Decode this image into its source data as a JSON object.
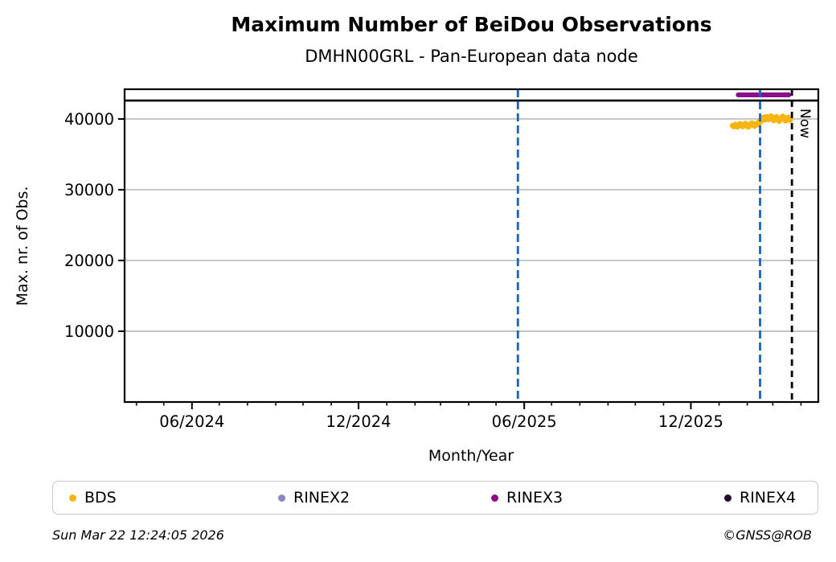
{
  "title": "Maximum Number of BeiDou Observations",
  "subtitle": "DMHN00GRL - Pan-European data node",
  "chart_data": {
    "type": "scatter",
    "xlabel": "Month/Year",
    "ylabel": "Max. nr. of Obs.",
    "xlim": [
      "2024-03-19",
      "2026-04-20"
    ],
    "ylim": [
      0,
      44200
    ],
    "yticks": [
      10000,
      20000,
      30000,
      40000
    ],
    "xticks_major": [
      {
        "date": "2024-06-01",
        "label": "06/2024"
      },
      {
        "date": "2024-12-01",
        "label": "12/2024"
      },
      {
        "date": "2025-06-01",
        "label": "06/2025"
      },
      {
        "date": "2025-12-01",
        "label": "12/2025"
      }
    ],
    "minor_ticks": "monthly",
    "grid": "horizontal",
    "grid_color": "#b0b0b0",
    "reference_line": {
      "value": 42600,
      "color": "#000000",
      "style": "solid"
    },
    "event_lines": [
      {
        "date": "2025-05-25",
        "color": "#1565c0",
        "style": "dashed"
      },
      {
        "date": "2026-02-15",
        "color": "#1565c0",
        "style": "dashed"
      }
    ],
    "now_line": {
      "date": "2026-03-22",
      "color": "#000000",
      "style": "dashed",
      "label": "Now"
    },
    "series": [
      {
        "name": "BDS",
        "color": "#f7b512",
        "type": "points",
        "points": [
          {
            "date": "2026-01-16",
            "value": 39050
          },
          {
            "date": "2026-01-17",
            "value": 38950
          },
          {
            "date": "2026-01-18",
            "value": 39100
          },
          {
            "date": "2026-01-19",
            "value": 39200
          },
          {
            "date": "2026-01-20",
            "value": 39100
          },
          {
            "date": "2026-01-21",
            "value": 38900
          },
          {
            "date": "2026-01-22",
            "value": 39000
          },
          {
            "date": "2026-01-23",
            "value": 39150
          },
          {
            "date": "2026-01-24",
            "value": 39300
          },
          {
            "date": "2026-01-25",
            "value": 39200
          },
          {
            "date": "2026-01-26",
            "value": 39050
          },
          {
            "date": "2026-01-27",
            "value": 38950
          },
          {
            "date": "2026-01-28",
            "value": 39100
          },
          {
            "date": "2026-01-29",
            "value": 39250
          },
          {
            "date": "2026-01-30",
            "value": 39350
          },
          {
            "date": "2026-01-31",
            "value": 39200
          },
          {
            "date": "2026-02-01",
            "value": 39050
          },
          {
            "date": "2026-02-02",
            "value": 38900
          },
          {
            "date": "2026-02-03",
            "value": 39000
          },
          {
            "date": "2026-02-04",
            "value": 39150
          },
          {
            "date": "2026-02-05",
            "value": 39300
          },
          {
            "date": "2026-02-06",
            "value": 39400
          },
          {
            "date": "2026-02-07",
            "value": 39250
          },
          {
            "date": "2026-02-08",
            "value": 39100
          },
          {
            "date": "2026-02-09",
            "value": 39000
          },
          {
            "date": "2026-02-10",
            "value": 39150
          },
          {
            "date": "2026-02-11",
            "value": 39300
          },
          {
            "date": "2026-02-12",
            "value": 39200
          },
          {
            "date": "2026-02-13",
            "value": 39450
          },
          {
            "date": "2026-02-14",
            "value": 39600
          },
          {
            "date": "2026-02-15",
            "value": 39500
          },
          {
            "date": "2026-02-16",
            "value": 39800
          },
          {
            "date": "2026-02-17",
            "value": 40000
          },
          {
            "date": "2026-02-18",
            "value": 40200
          },
          {
            "date": "2026-02-19",
            "value": 40050
          },
          {
            "date": "2026-02-20",
            "value": 39900
          },
          {
            "date": "2026-02-21",
            "value": 40100
          },
          {
            "date": "2026-02-22",
            "value": 40300
          },
          {
            "date": "2026-02-23",
            "value": 40150
          },
          {
            "date": "2026-02-24",
            "value": 39950
          },
          {
            "date": "2026-02-25",
            "value": 40050
          },
          {
            "date": "2026-02-26",
            "value": 40250
          },
          {
            "date": "2026-02-27",
            "value": 40400
          },
          {
            "date": "2026-02-28",
            "value": 40200
          },
          {
            "date": "2026-03-01",
            "value": 39950
          },
          {
            "date": "2026-03-02",
            "value": 39800
          },
          {
            "date": "2026-03-03",
            "value": 40000
          },
          {
            "date": "2026-03-04",
            "value": 40150
          },
          {
            "date": "2026-03-05",
            "value": 40300
          },
          {
            "date": "2026-03-06",
            "value": 40100
          },
          {
            "date": "2026-03-07",
            "value": 39850
          },
          {
            "date": "2026-03-08",
            "value": 39700
          },
          {
            "date": "2026-03-09",
            "value": 39900
          },
          {
            "date": "2026-03-10",
            "value": 40050
          },
          {
            "date": "2026-03-11",
            "value": 40200
          },
          {
            "date": "2026-03-12",
            "value": 40350
          },
          {
            "date": "2026-03-13",
            "value": 40150
          },
          {
            "date": "2026-03-14",
            "value": 39900
          },
          {
            "date": "2026-03-15",
            "value": 39750
          },
          {
            "date": "2026-03-16",
            "value": 39950
          },
          {
            "date": "2026-03-17",
            "value": 40100
          },
          {
            "date": "2026-03-18",
            "value": 40200
          },
          {
            "date": "2026-03-19",
            "value": 40000
          },
          {
            "date": "2026-03-20",
            "value": 39850
          }
        ]
      },
      {
        "name": "RINEX2",
        "color": "#8a88c0",
        "type": "points",
        "points": []
      },
      {
        "name": "RINEX3",
        "color": "#8b0f8b",
        "type": "segment",
        "value": 43400,
        "start": "2026-01-22",
        "end": "2026-03-20"
      },
      {
        "name": "RINEX4",
        "color": "#270b2e",
        "type": "points",
        "points": []
      }
    ]
  },
  "legend": {
    "items": [
      {
        "label": "BDS",
        "color": "#f7b512"
      },
      {
        "label": "RINEX2",
        "color": "#8a88c0"
      },
      {
        "label": "RINEX3",
        "color": "#8b0f8b"
      },
      {
        "label": "RINEX4",
        "color": "#270b2e"
      }
    ]
  },
  "footer": {
    "timestamp": "Sun Mar 22 12:24:05 2026",
    "copyright": "©GNSS@ROB"
  }
}
